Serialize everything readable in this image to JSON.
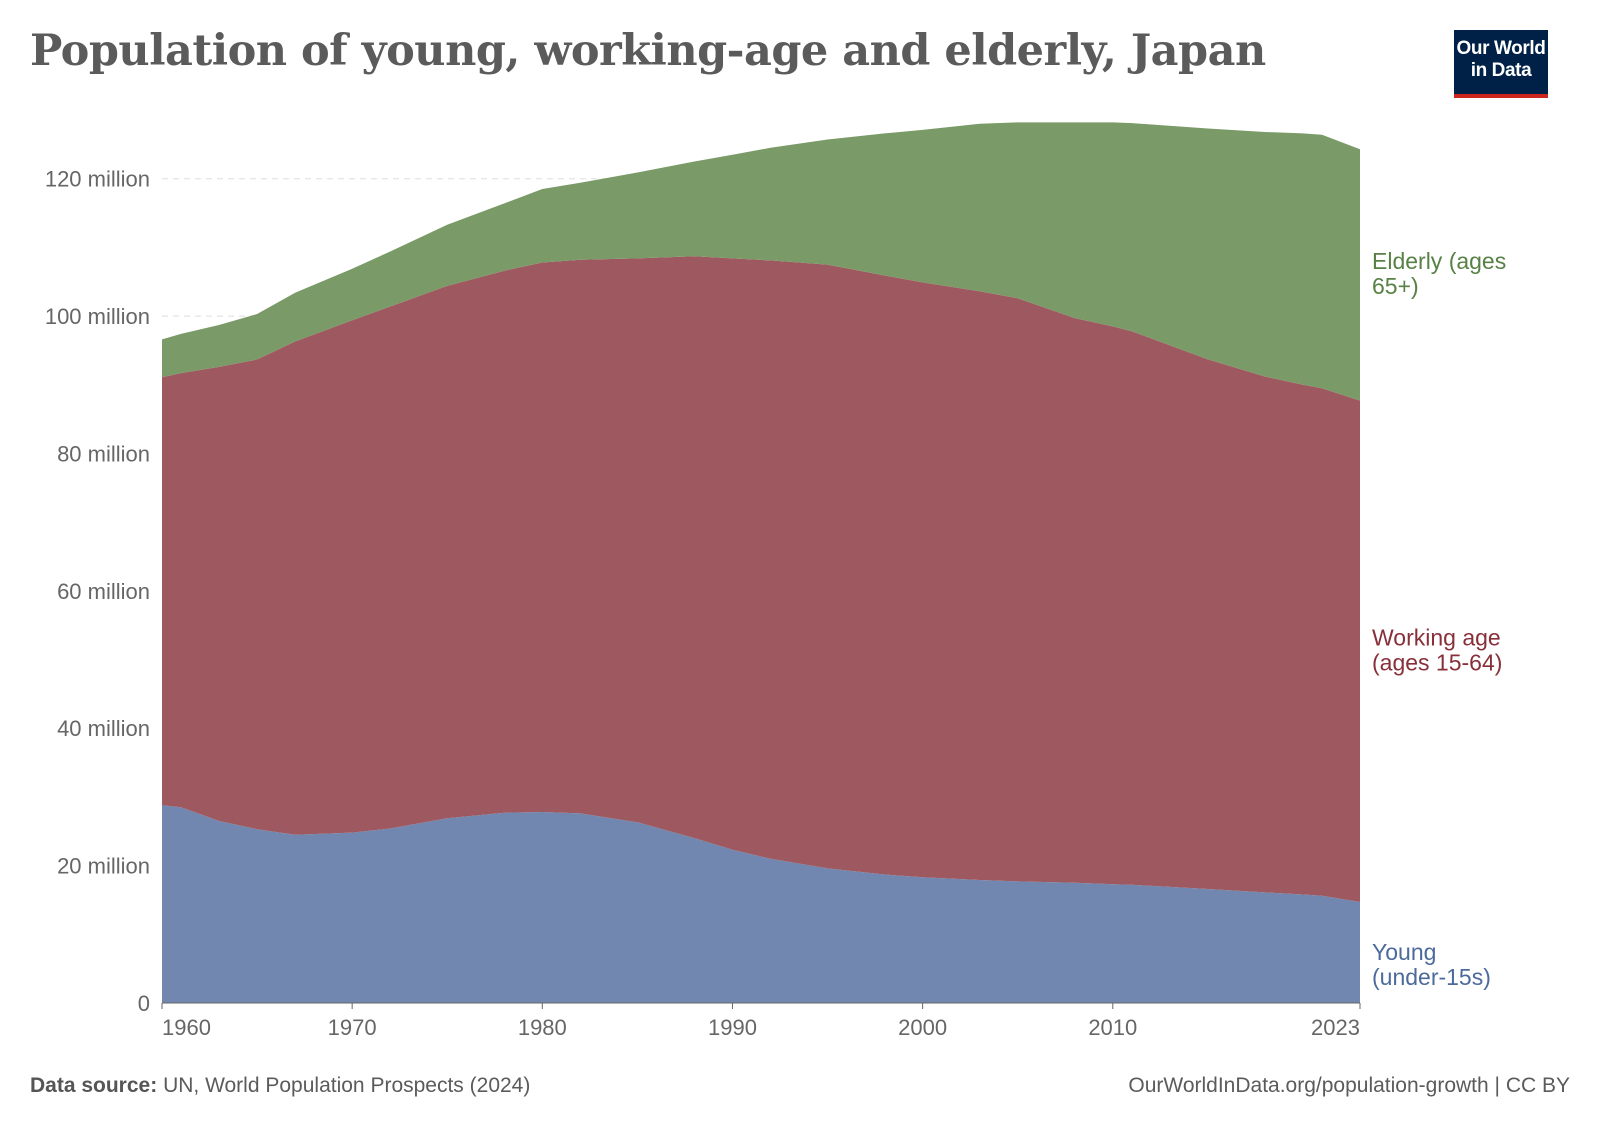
{
  "title": "Population of young, working-age and elderly, Japan",
  "logo": {
    "line1": "Our World",
    "line2": "in Data"
  },
  "footer": {
    "source_label": "Data source:",
    "source_text": "UN, World Population Prospects (2024)",
    "url": "OurWorldInData.org/population-growth",
    "license": "| CC BY"
  },
  "colors": {
    "young": "#7187b0",
    "working": "#9e5960",
    "elderly": "#7a9a67",
    "young_text": "#4c6a9c",
    "working_text": "#883039",
    "elderly_text": "#578145",
    "grid": "#dddddd",
    "axis": "#666666"
  },
  "chart_data": {
    "type": "area",
    "stacked": true,
    "title": "Population of young, working-age and elderly, Japan",
    "x": [
      1960,
      1961,
      1963,
      1965,
      1967,
      1970,
      1972,
      1975,
      1978,
      1980,
      1982,
      1985,
      1988,
      1990,
      1992,
      1995,
      1998,
      2000,
      2003,
      2005,
      2008,
      2010,
      2011,
      2015,
      2018,
      2020,
      2021,
      2023
    ],
    "series": [
      {
        "name": "Young (under-15s)",
        "label_lines": [
          "Young",
          "(under-15s)"
        ],
        "values": [
          28.8,
          28.5,
          26.5,
          25.3,
          24.5,
          24.8,
          25.4,
          26.9,
          27.7,
          27.8,
          27.6,
          26.3,
          24.0,
          22.3,
          21.0,
          19.6,
          18.7,
          18.3,
          17.9,
          17.7,
          17.5,
          17.3,
          17.2,
          16.6,
          16.1,
          15.8,
          15.6,
          14.7
        ]
      },
      {
        "name": "Working age (ages 15-64)",
        "label_lines": [
          "Working age",
          "(ages 15-64)"
        ],
        "values": [
          62.3,
          63.2,
          66.1,
          68.4,
          71.8,
          74.6,
          76.0,
          77.5,
          78.9,
          80.0,
          80.6,
          82.1,
          84.7,
          86.1,
          87.1,
          87.9,
          87.2,
          86.6,
          85.7,
          84.9,
          82.2,
          81.2,
          80.6,
          77.1,
          75.1,
          74.2,
          73.9,
          73.0
        ]
      },
      {
        "name": "Elderly (ages 65+)",
        "label_lines": [
          "Elderly (ages",
          "65+)"
        ],
        "values": [
          5.5,
          5.7,
          6.1,
          6.6,
          7.1,
          7.5,
          8.0,
          8.9,
          9.8,
          10.7,
          11.2,
          12.5,
          13.8,
          15.1,
          16.4,
          18.2,
          20.7,
          22.2,
          24.4,
          25.6,
          28.5,
          29.7,
          30.3,
          33.6,
          35.6,
          36.6,
          36.9,
          36.6
        ]
      }
    ],
    "xlim": [
      1960,
      2023
    ],
    "ylim": [
      0,
      130
    ],
    "x_ticks": [
      1960,
      1970,
      1980,
      1990,
      2000,
      2010,
      2023
    ],
    "x_tick_labels": [
      "1960",
      "1970",
      "1980",
      "1990",
      "2000",
      "2010",
      "2023"
    ],
    "y_ticks": [
      0,
      20,
      40,
      60,
      80,
      100,
      120
    ],
    "y_tick_labels": [
      "0",
      "20 million",
      "40 million",
      "60 million",
      "80 million",
      "100 million",
      "120 million"
    ],
    "grid": true,
    "unit": "million"
  }
}
